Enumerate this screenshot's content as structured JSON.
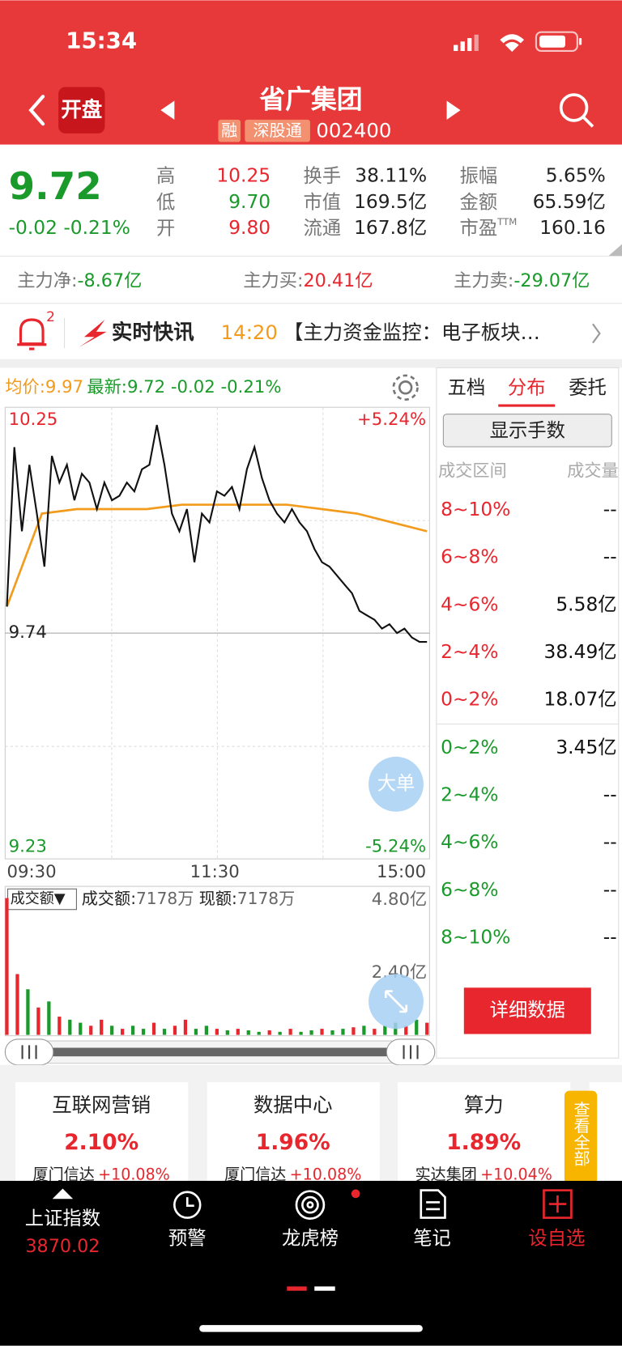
{
  "status_bar": {
    "time": "15:34"
  },
  "header": {
    "badge": "开盘",
    "title": "省广集团",
    "tags": [
      "融",
      "深股通"
    ],
    "code": "002400"
  },
  "quote": {
    "price": "9.72",
    "change": "-0.02 -0.21%",
    "stats": [
      {
        "label": "高",
        "value": "10.25",
        "color": "#e8262e"
      },
      {
        "label": "低",
        "value": "9.70",
        "color": "#1a9a2a"
      },
      {
        "label": "开",
        "value": "9.80",
        "color": "#e8262e"
      },
      {
        "label": "换手",
        "value": "38.11%",
        "color": "#222222"
      },
      {
        "label": "市值",
        "value": "169.5亿",
        "color": "#222222"
      },
      {
        "label": "流通",
        "value": "167.8亿",
        "color": "#222222"
      },
      {
        "label": "振幅",
        "value": "5.65%",
        "color": "#222222"
      },
      {
        "label": "金额",
        "value": "65.59亿",
        "color": "#222222"
      },
      {
        "label": "市盈",
        "label_sup": "TTM",
        "value": "160.16",
        "color": "#222222"
      }
    ]
  },
  "fund_flow": [
    {
      "label": "主力净:",
      "value": "-8.67亿",
      "color": "#1a9a2a"
    },
    {
      "label": "主力买:",
      "value": "20.41亿",
      "color": "#e8262e"
    },
    {
      "label": "主力卖:",
      "value": "-29.07亿",
      "color": "#1a9a2a"
    }
  ],
  "news": {
    "badge_count": "2",
    "title": "实时快讯",
    "time": "14:20",
    "text": "【主力资金监控：电子板块…"
  },
  "intraday": {
    "avg_label": "均价:",
    "avg": "9.97",
    "latest_label": "最新:",
    "latest": "9.72 -0.02 -0.21%",
    "ylim": [
      9.23,
      10.25
    ],
    "yticks": [
      10.25,
      9.74,
      9.23
    ],
    "pct_labels": [
      "+5.24%",
      "-5.24%"
    ],
    "xticks": [
      "09:30",
      "11:30",
      "15:00"
    ],
    "price": [
      9.8,
      10.16,
      9.97,
      10.12,
      10.01,
      9.89,
      10.14,
      10.08,
      10.12,
      10.04,
      10.1,
      10.08,
      10.02,
      10.08,
      10.04,
      10.05,
      10.08,
      10.06,
      10.11,
      10.12,
      10.21,
      10.12,
      10.01,
      9.97,
      10.02,
      9.9,
      10.01,
      9.99,
      10.06,
      10.05,
      10.07,
      10.02,
      10.11,
      10.16,
      10.09,
      10.04,
      10.01,
      9.99,
      10.02,
      9.99,
      9.97,
      9.93,
      9.9,
      9.89,
      9.87,
      9.85,
      9.83,
      9.79,
      9.78,
      9.77,
      9.75,
      9.76,
      9.74,
      9.75,
      9.73,
      9.72,
      9.72
    ],
    "avg_line": [
      9.8,
      10.01,
      10.02,
      10.02,
      10.02,
      10.03,
      10.03,
      10.03,
      10.03,
      10.02,
      10.01,
      9.99,
      9.97
    ],
    "price_color": "#111111",
    "avg_color": "#f29b1d",
    "big_order_button": "大单"
  },
  "volume": {
    "selector": "成交额▼",
    "amount_label": "成交额:",
    "amount": "7178万",
    "current_label": "现额:",
    "current": "7178万",
    "ylim": [
      0,
      4.8
    ],
    "yticks": [
      {
        "value": 4.8,
        "label": "4.80亿"
      },
      {
        "value": 2.4,
        "label": "2.40亿"
      }
    ],
    "values": [
      4.5,
      2.0,
      1.5,
      0.9,
      1.1,
      0.6,
      0.5,
      0.4,
      0.3,
      0.5,
      0.3,
      0.2,
      0.3,
      0.2,
      0.4,
      0.2,
      0.3,
      0.5,
      0.2,
      0.3,
      0.2,
      0.15,
      0.2,
      0.15,
      0.1,
      0.15,
      0.1,
      0.2,
      0.1,
      0.15,
      0.2,
      0.15,
      0.2,
      0.25,
      0.3,
      0.2,
      0.3,
      0.4,
      0.3,
      0.5,
      0.4
    ],
    "colors": [
      "#e8262e",
      "#e8262e",
      "#1a9a2a",
      "#e8262e",
      "#1a9a2a",
      "#e8262e",
      "#1a9a2a",
      "#1a9a2a",
      "#e8262e",
      "#e8262e",
      "#1a9a2a",
      "#e8262e",
      "#1a9a2a",
      "#1a9a2a",
      "#e8262e",
      "#1a9a2a",
      "#e8262e",
      "#e8262e",
      "#1a9a2a",
      "#1a9a2a",
      "#e8262e",
      "#1a9a2a",
      "#e8262e",
      "#1a9a2a",
      "#1a9a2a",
      "#e8262e",
      "#1a9a2a",
      "#e8262e",
      "#1a9a2a",
      "#1a9a2a",
      "#e8262e",
      "#1a9a2a",
      "#1a9a2a",
      "#e8262e",
      "#1a9a2a",
      "#e8262e",
      "#1a9a2a",
      "#1a9a2a",
      "#e8262e",
      "#1a9a2a",
      "#e8262e"
    ]
  },
  "side_panel": {
    "tabs": [
      "五档",
      "分布",
      "委托"
    ],
    "active_tab": 1,
    "button": "显示手数",
    "headers": [
      "成交区间",
      "成交量"
    ],
    "inflow": [
      {
        "range": "8~10%",
        "amount": "--"
      },
      {
        "range": "6~8%",
        "amount": "--"
      },
      {
        "range": "4~6%",
        "amount": "5.58亿"
      },
      {
        "range": "2~4%",
        "amount": "38.49亿"
      },
      {
        "range": "0~2%",
        "amount": "18.07亿"
      }
    ],
    "outflow": [
      {
        "range": "0~2%",
        "amount": "3.45亿"
      },
      {
        "range": "2~4%",
        "amount": "--"
      },
      {
        "range": "4~6%",
        "amount": "--"
      },
      {
        "range": "6~8%",
        "amount": "--"
      },
      {
        "range": "8~10%",
        "amount": "--"
      }
    ],
    "detail_button": "详细数据"
  },
  "sectors": [
    {
      "name": "互联网营销",
      "change": "2.10%",
      "lead": "厦门信达",
      "lead_change": "+10.08%"
    },
    {
      "name": "数据中心",
      "change": "1.96%",
      "lead": "厦门信达",
      "lead_change": "+10.08%"
    },
    {
      "name": "算力",
      "change": "1.89%",
      "lead": "实达集团",
      "lead_change": "+10.04%"
    }
  ],
  "view_all": "查看全部",
  "bottom_nav": {
    "index_name": "上证指数",
    "index_value": "3870.02",
    "items": [
      "预警",
      "龙虎榜",
      "笔记",
      "设自选"
    ]
  }
}
